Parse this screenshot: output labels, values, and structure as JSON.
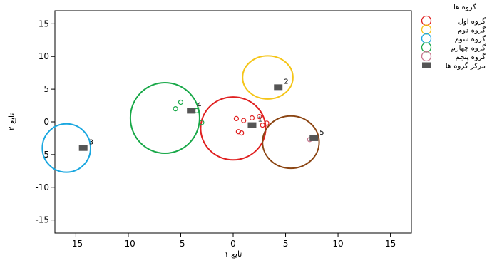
{
  "chart_data": {
    "type": "scatter",
    "xlabel": "تابع ۱",
    "ylabel": "تابع ۲",
    "xlim": [
      -17,
      17
    ],
    "ylim": [
      -17,
      17
    ],
    "xticks": [
      -15,
      -10,
      -5,
      0,
      5,
      10,
      15
    ],
    "yticks": [
      15,
      10,
      5,
      0,
      -5,
      -10,
      -15
    ],
    "xtick_labels": [
      "-15",
      "-10",
      "-5",
      "0",
      "5",
      "10",
      "15"
    ],
    "ytick_labels": [
      "15",
      "10",
      "5",
      "0",
      "-5",
      "-10",
      "-15"
    ],
    "grid": false,
    "legend": {
      "title": "گروه ها",
      "placement": "top-right",
      "entries": [
        {
          "label": "گروه اول",
          "color": "#e02020",
          "marker": "circle"
        },
        {
          "label": "گروه دوم",
          "color": "#f5c518",
          "marker": "circle"
        },
        {
          "label": "گروه سوم",
          "color": "#1aa7e0",
          "marker": "circle"
        },
        {
          "label": "گروه چهارم",
          "color": "#18a848",
          "marker": "circle"
        },
        {
          "label": "گروه پنجم",
          "color": "#c87890",
          "marker": "circle"
        },
        {
          "label": "مرکز گروه ها",
          "color": "#555555",
          "marker": "square"
        }
      ]
    },
    "series": [
      {
        "group": 1,
        "color": "#e02020",
        "points": [
          [
            0.3,
            0.5
          ],
          [
            1.0,
            0.2
          ],
          [
            1.8,
            0.6
          ],
          [
            2.5,
            0.8
          ],
          [
            2.8,
            -0.5
          ],
          [
            3.2,
            -0.2
          ],
          [
            0.5,
            -1.5
          ],
          [
            0.8,
            -1.7
          ]
        ]
      },
      {
        "group": 4,
        "color": "#18a848",
        "points": [
          [
            -5.5,
            2.0
          ],
          [
            -5.0,
            3.0
          ],
          [
            -3.5,
            1.7
          ],
          [
            -3.0,
            -0.1
          ]
        ]
      },
      {
        "group": 5,
        "color": "#c87890",
        "points": [
          [
            7.3,
            -2.7
          ]
        ]
      }
    ],
    "group_regions": [
      {
        "group": 1,
        "color": "#e02020",
        "center": [
          0.0,
          -1.0
        ],
        "rx": 3.1,
        "ry": 4.8
      },
      {
        "group": 2,
        "color": "#f5c518",
        "center": [
          3.3,
          6.8
        ],
        "rx": 2.4,
        "ry": 3.3
      },
      {
        "group": 3,
        "color": "#1aa7e0",
        "center": [
          -15.9,
          -4.0
        ],
        "rx": 2.3,
        "ry": 3.7
      },
      {
        "group": 4,
        "color": "#18a848",
        "center": [
          -6.5,
          0.6
        ],
        "rx": 3.3,
        "ry": 5.4
      },
      {
        "group": 5,
        "color": "#8b4513",
        "center": [
          5.5,
          -3.1
        ],
        "rx": 2.7,
        "ry": 4.0
      }
    ],
    "centroids": [
      {
        "label": "1",
        "x": 1.8,
        "y": -0.5
      },
      {
        "label": "2",
        "x": 4.3,
        "y": 5.3
      },
      {
        "label": "3",
        "x": -14.3,
        "y": -4.0
      },
      {
        "label": "4",
        "x": -4.0,
        "y": 1.7
      },
      {
        "label": "5",
        "x": 7.7,
        "y": -2.5
      }
    ]
  }
}
